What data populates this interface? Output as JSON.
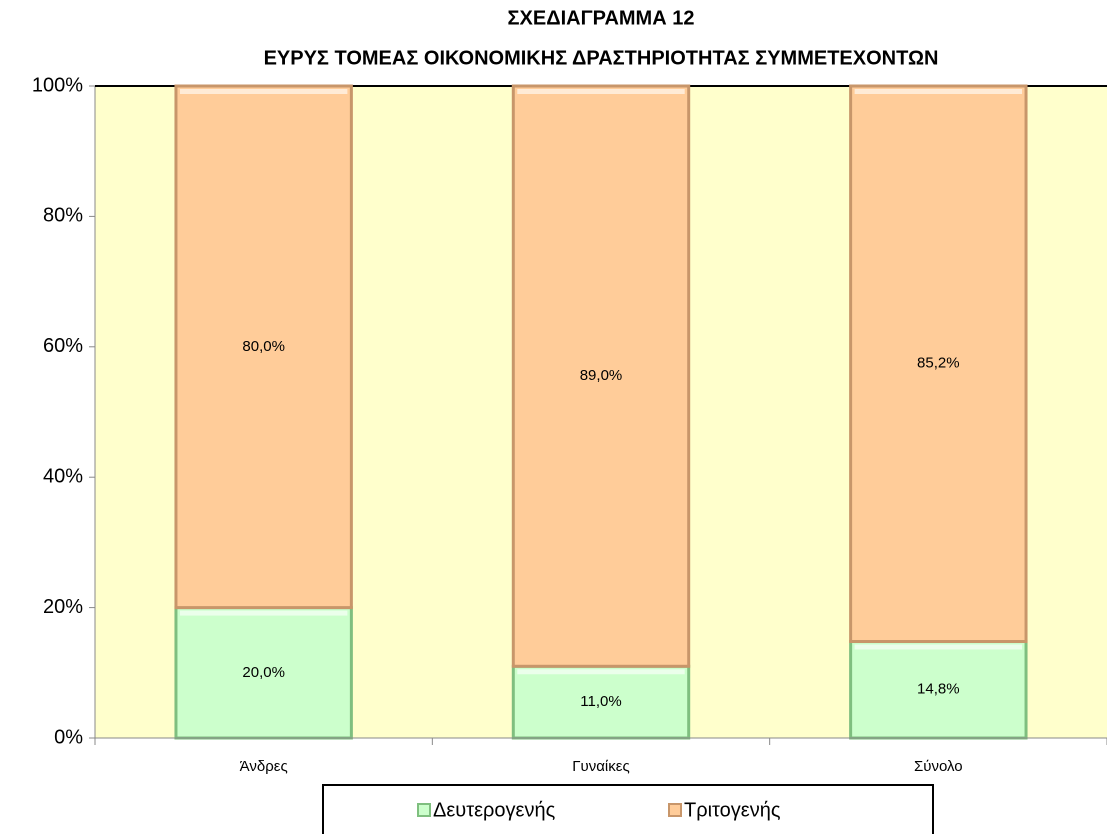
{
  "chart_data": {
    "type": "stacked_bar",
    "title": "ΣΧΕΔΙΑΓΡΑΜΜΑ 12",
    "subtitle": "ΕΥΡΥΣ ΤΟΜΕΑΣ ΟΙΚΟΝΟΜΙΚΗΣ ΔΡΑΣΤΗΡΙΟΤΗΤΑΣ ΣΥΜΜΕΤΕΧΟΝΤΩΝ",
    "categories": [
      "Άνδρες",
      "Γυναίκες",
      "Σύνολο"
    ],
    "series": [
      {
        "name": "Δευτερογενής",
        "color": "#ccffcc",
        "values": [
          20.0,
          11.0,
          14.8
        ],
        "value_labels": [
          "20,0%",
          "11,0%",
          "14,8%"
        ]
      },
      {
        "name": "Τριτογενής",
        "color": "#ffcc99",
        "values": [
          80.0,
          89.0,
          85.2
        ],
        "value_labels": [
          "80,0%",
          "89,0%",
          "85,2%"
        ]
      }
    ],
    "ylim": [
      0,
      100
    ],
    "yticks": [
      {
        "value": 0,
        "label": "0%"
      },
      {
        "value": 20,
        "label": "20%"
      },
      {
        "value": 40,
        "label": "40%"
      },
      {
        "value": 60,
        "label": "60%"
      },
      {
        "value": 80,
        "label": "80%"
      },
      {
        "value": 100,
        "label": "100%"
      }
    ],
    "plot_background": "#ffffcc",
    "legend": "bottom"
  }
}
